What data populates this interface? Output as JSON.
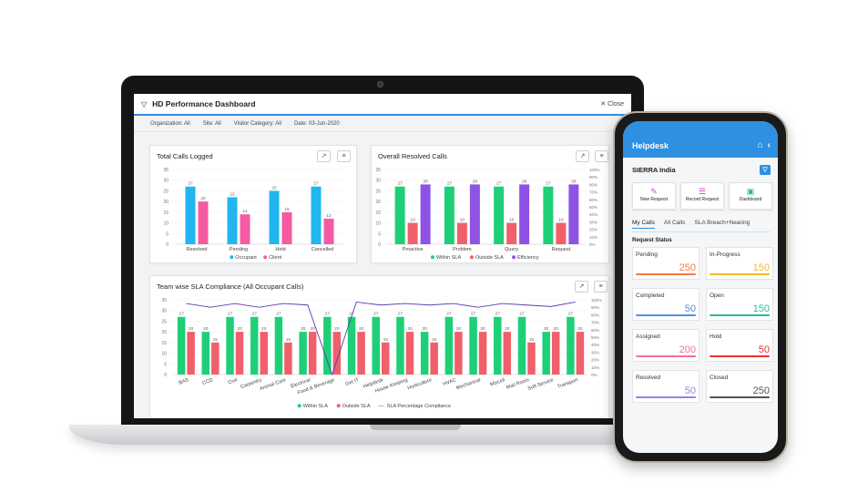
{
  "dashboard": {
    "title": "HD Performance Dashboard",
    "close_label": "Close",
    "filters": {
      "organization": "Organization: All",
      "site": "Site: All",
      "visitor_category": "Visitor Category: All",
      "date": "Date: 03-Jun-2020"
    },
    "cards": {
      "total_calls_title": "Total Calls Logged",
      "resolved_calls_title": "Overall Resolved Calls",
      "sla_title": "Team wise SLA Compliance (All Occupant Calls)"
    },
    "colors": {
      "accent": "#2f8fe0",
      "occupant": "#21b6f0",
      "client": "#f45ba2",
      "within_sla": "#1fcf78",
      "outside_sla": "#f0606a",
      "efficiency": "#8e53e4",
      "sla_line": "#5a3bb0"
    }
  },
  "chart_data": [
    {
      "type": "bar",
      "title": "Total Calls Logged",
      "categories": [
        "Resolved",
        "Pending",
        "Hold",
        "Cancelled"
      ],
      "series": [
        {
          "name": "Occupant",
          "values": [
            27,
            22,
            25,
            27
          ]
        },
        {
          "name": "Client",
          "values": [
            20,
            14,
            15,
            12
          ]
        }
      ],
      "ylim": [
        0,
        35
      ],
      "yticks": [
        0,
        5,
        10,
        15,
        20,
        25,
        30,
        35
      ],
      "legend": "bottom"
    },
    {
      "type": "bar",
      "title": "Overall Resolved Calls",
      "categories": [
        "Proactive",
        "Problem",
        "Query",
        "Request"
      ],
      "series": [
        {
          "name": "Within SLA",
          "values": [
            27,
            27,
            27,
            27
          ],
          "axis": "left"
        },
        {
          "name": "Outside SLA",
          "values": [
            10,
            10,
            10,
            10
          ],
          "axis": "left"
        },
        {
          "name": "Efficiency",
          "values": [
            28,
            28,
            28,
            28
          ],
          "axis": "left"
        }
      ],
      "ylim": [
        0,
        35
      ],
      "yticks": [
        0,
        5,
        10,
        15,
        20,
        25,
        30,
        35
      ],
      "y2ticks": [
        "0%",
        "10%",
        "20%",
        "30%",
        "40%",
        "50%",
        "60%",
        "70%",
        "80%",
        "90%",
        "100%"
      ],
      "legend": "bottom"
    },
    {
      "type": "bar",
      "title": "Team wise SLA Compliance (All Occupant Calls)",
      "categories": [
        "BAS",
        "CCD",
        "Civil",
        "Carpentry",
        "Animal Care",
        "Electrical",
        "Food & Beverage",
        "Get IT",
        "Helpdesk",
        "House Keeping",
        "Horticulture",
        "HVAC",
        "Mechanical",
        "Miscell",
        "Mail Room",
        "Soft Service",
        "Transport"
      ],
      "series": [
        {
          "name": "Within SLA",
          "values": [
            27,
            20,
            27,
            27,
            27,
            20,
            27,
            27,
            27,
            27,
            20,
            27,
            27,
            27,
            27,
            20,
            27
          ]
        },
        {
          "name": "Outside SLA",
          "values": [
            20,
            15,
            20,
            20,
            15,
            20,
            20,
            20,
            15,
            20,
            15,
            20,
            20,
            20,
            15,
            20,
            20
          ]
        },
        {
          "name": "SLA Percentage Compliance",
          "type": "line",
          "values": [
            95,
            90,
            95,
            90,
            95,
            93,
            0,
            97,
            93,
            95,
            93,
            95,
            90,
            95,
            93,
            91,
            97
          ]
        }
      ],
      "ylim": [
        0,
        35
      ],
      "yticks": [
        0,
        5,
        10,
        15,
        20,
        25,
        30,
        35
      ],
      "y2ticks": [
        "0%",
        "10%",
        "20%",
        "30%",
        "40%",
        "50%",
        "60%",
        "70%",
        "80%",
        "90%",
        "100%"
      ],
      "legend": "bottom"
    }
  ],
  "phone": {
    "app_title": "Helpdesk",
    "organization": "SIERRA India",
    "quick_actions": [
      "New Request",
      "Record Request",
      "Dashboard"
    ],
    "tabs": [
      "My Calls",
      "All Calls",
      "SLA Breach+Nearing"
    ],
    "section_title": "Request Status",
    "tiles": [
      {
        "label": "Pending",
        "value": "250",
        "color": "#f47a45"
      },
      {
        "label": "In-Progress",
        "value": "150",
        "color": "#f2b833"
      },
      {
        "label": "Completed",
        "value": "50",
        "color": "#4f8fe6"
      },
      {
        "label": "Open",
        "value": "150",
        "color": "#27b9a0"
      },
      {
        "label": "Assigned",
        "value": "200",
        "color": "#f46e9e"
      },
      {
        "label": "Hold",
        "value": "50",
        "color": "#e8352e"
      },
      {
        "label": "Resolved",
        "value": "50",
        "color": "#9a7ee8"
      },
      {
        "label": "Closed",
        "value": "250",
        "color": "#555555"
      }
    ]
  }
}
